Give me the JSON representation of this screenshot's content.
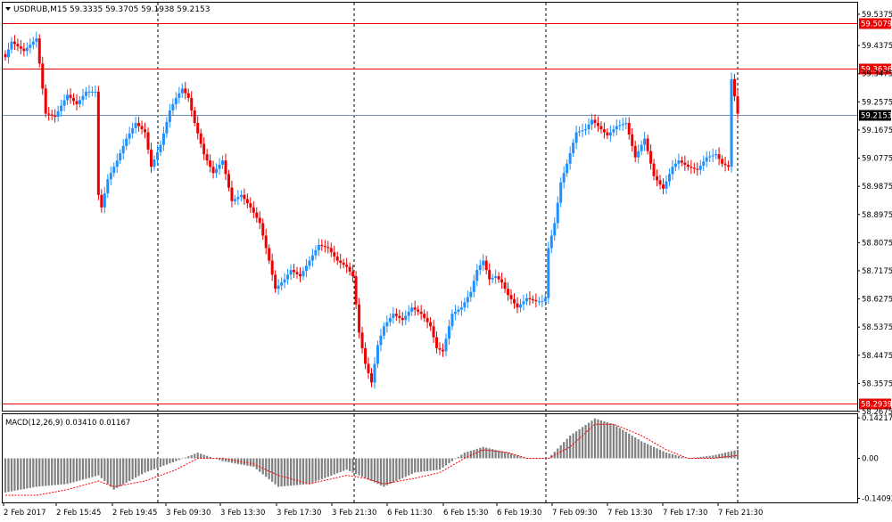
{
  "window": {
    "symbol_timeframe": "USDRUB,M15",
    "ohlc_text": "59.3335 59.3705 59.1938 59.2153"
  },
  "colors": {
    "bull": "#1e90ff",
    "bear": "#ee0000",
    "level_line": "#ee0000",
    "current_line": "#6d8fb8",
    "macd_hist": "#808080",
    "macd_signal": "#ff0000",
    "grid": "#000000"
  },
  "main_axis": {
    "ylim": [
      58.2675,
      59.5375
    ],
    "tick_labels": [
      "59.5375",
      "59.4375",
      "59.3475",
      "59.2575",
      "59.1675",
      "59.0775",
      "58.9875",
      "58.8975",
      "58.8075",
      "58.7175",
      "58.6275",
      "58.5375",
      "58.4475",
      "58.3575",
      "58.2675"
    ]
  },
  "levels": [
    {
      "price": 59.5079,
      "label": "59.5079"
    },
    {
      "price": 59.3636,
      "label": "59.3636"
    },
    {
      "price": 58.2939,
      "label": "58.2939"
    }
  ],
  "current_price": {
    "price": 59.2153,
    "label": "59.2153"
  },
  "macd": {
    "title": "MACD(12,26,9) 0.03410 0.01167",
    "ylim": [
      -0.155,
      0.155
    ],
    "tick_labels": [
      "0.14217",
      "0.00",
      "-0.14092"
    ]
  },
  "x_axis": {
    "labels": [
      "2 Feb 2017",
      "2 Feb 15:45",
      "2 Feb 19:45",
      "3 Feb 09:30",
      "3 Feb 13:30",
      "3 Feb 17:30",
      "3 Feb 21:30",
      "6 Feb 11:30",
      "6 Feb 15:30",
      "6 Feb 19:30",
      "7 Feb 09:30",
      "7 Feb 13:30",
      "7 Feb 17:30",
      "7 Feb 21:30"
    ]
  },
  "chart_data": {
    "type": "candlestick",
    "title": "USDRUB,M15",
    "series": [
      {
        "name": "USDRUB",
        "anchors": [
          [
            0,
            59.4
          ],
          [
            2,
            59.45
          ],
          [
            6,
            59.42
          ],
          [
            10,
            59.46
          ],
          [
            13,
            59.22
          ],
          [
            16,
            59.21
          ],
          [
            20,
            59.28
          ],
          [
            23,
            59.25
          ],
          [
            26,
            59.29
          ],
          [
            29,
            59.29
          ],
          [
            30,
            58.96
          ],
          [
            31,
            58.92
          ],
          [
            33,
            59.01
          ],
          [
            36,
            59.07
          ],
          [
            39,
            59.14
          ],
          [
            42,
            59.19
          ],
          [
            45,
            59.16
          ],
          [
            47,
            59.05
          ],
          [
            50,
            59.12
          ],
          [
            53,
            59.23
          ],
          [
            55,
            59.27
          ],
          [
            57,
            59.3
          ],
          [
            59,
            59.27
          ],
          [
            61,
            59.19
          ],
          [
            64,
            59.09
          ],
          [
            67,
            59.03
          ],
          [
            70,
            59.07
          ],
          [
            73,
            58.94
          ],
          [
            76,
            58.96
          ],
          [
            79,
            58.92
          ],
          [
            82,
            58.87
          ],
          [
            85,
            58.75
          ],
          [
            87,
            58.66
          ],
          [
            90,
            58.69
          ],
          [
            92,
            58.72
          ],
          [
            95,
            58.7
          ],
          [
            98,
            58.75
          ],
          [
            101,
            58.8
          ],
          [
            104,
            58.79
          ],
          [
            107,
            58.75
          ],
          [
            110,
            58.73
          ],
          [
            112,
            58.7
          ],
          [
            114,
            58.52
          ],
          [
            116,
            58.42
          ],
          [
            118,
            58.36
          ],
          [
            120,
            58.48
          ],
          [
            122,
            58.54
          ],
          [
            125,
            58.58
          ],
          [
            128,
            58.56
          ],
          [
            131,
            58.6
          ],
          [
            134,
            58.58
          ],
          [
            137,
            58.54
          ],
          [
            139,
            58.47
          ],
          [
            141,
            58.46
          ],
          [
            144,
            58.58
          ],
          [
            147,
            58.6
          ],
          [
            150,
            58.65
          ],
          [
            152,
            58.72
          ],
          [
            154,
            58.75
          ],
          [
            156,
            58.69
          ],
          [
            158,
            58.7
          ],
          [
            160,
            58.68
          ],
          [
            162,
            58.64
          ],
          [
            165,
            58.6
          ],
          [
            168,
            58.63
          ],
          [
            171,
            58.62
          ],
          [
            173,
            58.62
          ],
          [
            174,
            58.63
          ],
          [
            175,
            58.79
          ],
          [
            177,
            58.87
          ],
          [
            179,
            59.0
          ],
          [
            181,
            59.06
          ],
          [
            184,
            59.16
          ],
          [
            187,
            59.17
          ],
          [
            189,
            59.2
          ],
          [
            191,
            59.18
          ],
          [
            194,
            59.15
          ],
          [
            197,
            59.18
          ],
          [
            200,
            59.19
          ],
          [
            203,
            59.08
          ],
          [
            206,
            59.14
          ],
          [
            209,
            59.02
          ],
          [
            212,
            58.98
          ],
          [
            215,
            59.05
          ],
          [
            217,
            59.07
          ],
          [
            220,
            59.05
          ],
          [
            223,
            59.04
          ],
          [
            226,
            59.08
          ],
          [
            229,
            59.09
          ],
          [
            231,
            59.06
          ],
          [
            233,
            59.05
          ],
          [
            234,
            59.33
          ],
          [
            236,
            59.22
          ]
        ]
      },
      {
        "name": "MACD(12,26,9)",
        "anchors": [
          [
            0,
            -0.12
          ],
          [
            10,
            -0.1
          ],
          [
            20,
            -0.09
          ],
          [
            30,
            -0.06
          ],
          [
            35,
            -0.11
          ],
          [
            45,
            -0.05
          ],
          [
            55,
            -0.01
          ],
          [
            62,
            0.02
          ],
          [
            70,
            -0.01
          ],
          [
            80,
            -0.03
          ],
          [
            88,
            -0.1
          ],
          [
            98,
            -0.09
          ],
          [
            110,
            -0.04
          ],
          [
            116,
            -0.07
          ],
          [
            122,
            -0.1
          ],
          [
            132,
            -0.05
          ],
          [
            140,
            -0.04
          ],
          [
            148,
            0.02
          ],
          [
            154,
            0.04
          ],
          [
            162,
            0.02
          ],
          [
            168,
            0.0
          ],
          [
            175,
            0.0
          ],
          [
            182,
            0.08
          ],
          [
            190,
            0.14
          ],
          [
            196,
            0.12
          ],
          [
            205,
            0.06
          ],
          [
            213,
            0.02
          ],
          [
            220,
            0.0
          ],
          [
            228,
            0.01
          ],
          [
            236,
            0.03
          ]
        ]
      },
      {
        "name": "Signal",
        "anchors": [
          [
            0,
            -0.13
          ],
          [
            10,
            -0.13
          ],
          [
            20,
            -0.11
          ],
          [
            30,
            -0.08
          ],
          [
            35,
            -0.1
          ],
          [
            45,
            -0.08
          ],
          [
            55,
            -0.04
          ],
          [
            62,
            0.0
          ],
          [
            70,
            0.0
          ],
          [
            80,
            -0.02
          ],
          [
            88,
            -0.06
          ],
          [
            98,
            -0.09
          ],
          [
            110,
            -0.06
          ],
          [
            116,
            -0.07
          ],
          [
            122,
            -0.09
          ],
          [
            132,
            -0.07
          ],
          [
            140,
            -0.05
          ],
          [
            148,
            0.0
          ],
          [
            154,
            0.03
          ],
          [
            162,
            0.02
          ],
          [
            168,
            0.0
          ],
          [
            175,
            0.0
          ],
          [
            182,
            0.04
          ],
          [
            190,
            0.12
          ],
          [
            196,
            0.12
          ],
          [
            205,
            0.08
          ],
          [
            213,
            0.03
          ],
          [
            220,
            0.0
          ],
          [
            228,
            0.0
          ],
          [
            236,
            0.01
          ]
        ]
      }
    ],
    "ylim": [
      58.2675,
      59.5375
    ],
    "xlabel": "",
    "ylabel": ""
  }
}
